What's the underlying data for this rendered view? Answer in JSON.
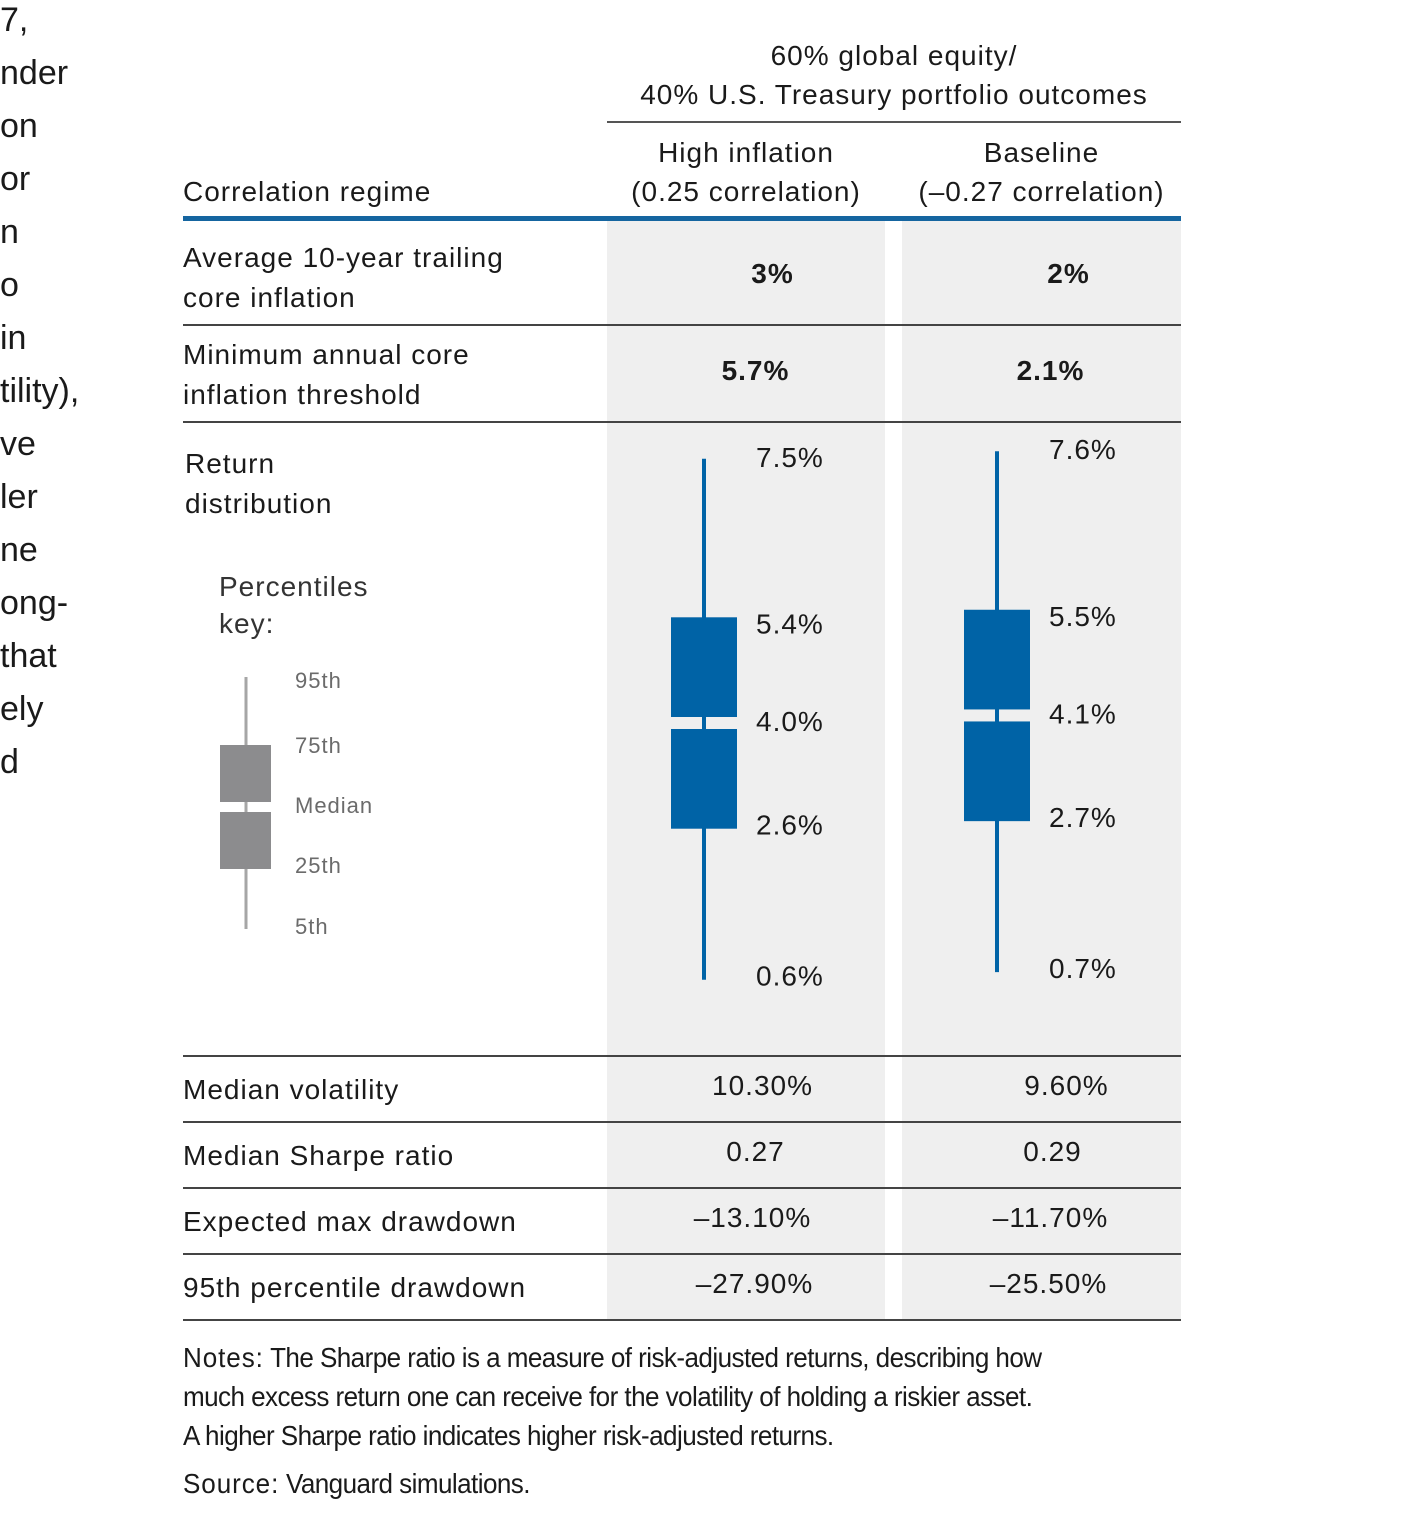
{
  "edge_text": [
    "7,",
    "nder",
    "on",
    "or",
    "n",
    "o",
    "in",
    "tility),",
    "ve",
    "ler",
    "ne",
    "ong-",
    "",
    "that",
    "ely",
    "d"
  ],
  "header": {
    "group_line1": "60% global equity/",
    "group_line2": "40% U.S. Treasury portfolio outcomes",
    "row_label": "Correlation regime",
    "col1_line1": "High inflation",
    "col1_line2": "(0.25 correlation)",
    "col2_line1": "Baseline",
    "col2_line2": "(–0.27 correlation)"
  },
  "rows": {
    "avg_inflation": {
      "label_line1": "Average 10-year trailing",
      "label_line2": "core inflation",
      "col1": "3%",
      "col2": "2%"
    },
    "min_inflation": {
      "label_line1": "Minimum annual core",
      "label_line2": "inflation threshold",
      "col1": "5.7%",
      "col2": "2.1%"
    },
    "return_dist": {
      "label_line1": "Return",
      "label_line2": "distribution"
    },
    "volatility": {
      "label": "Median volatility",
      "col1": "10.30%",
      "col2": "9.60%"
    },
    "sharpe": {
      "label": "Median Sharpe ratio",
      "col1": "0.27",
      "col2": "0.29"
    },
    "max_dd": {
      "label": "Expected max drawdown",
      "col1": "–13.10%",
      "col2": "–11.70%"
    },
    "p95_dd": {
      "label": "95th percentile drawdown",
      "col1": "–27.90%",
      "col2": "–25.50%"
    }
  },
  "key": {
    "title_line1": "Percentiles",
    "title_line2": "key:",
    "labels": [
      "95th",
      "75th",
      "Median",
      "25th",
      "5th"
    ]
  },
  "chart_data": {
    "type": "boxplot",
    "unit": "%",
    "percentiles": [
      "5th",
      "25th",
      "Median",
      "75th",
      "95th"
    ],
    "series": [
      {
        "category": "High inflation (0.25 correlation)",
        "p5": 0.6,
        "p25": 2.6,
        "median": 4.0,
        "p75": 5.4,
        "p95": 7.5,
        "labels": {
          "p5": "0.6%",
          "p25": "2.6%",
          "median": "4.0%",
          "p75": "5.4%",
          "p95": "7.5%"
        }
      },
      {
        "category": "Baseline (–0.27 correlation)",
        "p5": 0.7,
        "p25": 2.7,
        "median": 4.1,
        "p75": 5.5,
        "p95": 7.6,
        "labels": {
          "p5": "0.7%",
          "p25": "2.7%",
          "median": "4.1%",
          "p75": "5.5%",
          "p95": "7.6%"
        }
      }
    ],
    "colors": {
      "box": "#0063a6",
      "key_box": "#8c8c8e",
      "key_whisker": "#a6a6a6",
      "shade": "#efefef",
      "rule_accent": "#1565a0"
    }
  },
  "notes": {
    "notes_label": "Notes:",
    "notes_line1": "The Sharpe ratio is a measure of risk-adjusted returns, describing how",
    "notes_line2": "much excess return one can receive for the volatility of holding a riskier asset.",
    "notes_line3": "A higher Sharpe ratio indicates higher risk-adjusted returns.",
    "source_label": "Source:",
    "source_text": "Vanguard simulations."
  }
}
